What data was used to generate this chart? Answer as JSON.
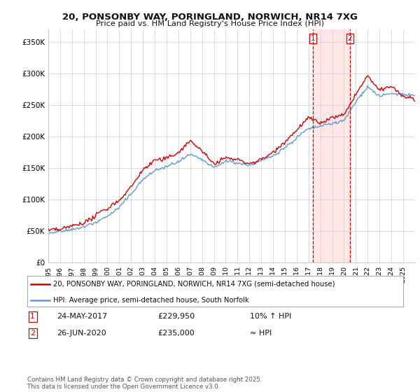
{
  "title": "20, PONSONBY WAY, PORINGLAND, NORWICH, NR14 7XG",
  "subtitle": "Price paid vs. HM Land Registry's House Price Index (HPI)",
  "legend_line1": "20, PONSONBY WAY, PORINGLAND, NORWICH, NR14 7XG (semi-detached house)",
  "legend_line2": "HPI: Average price, semi-detached house, South Norfolk",
  "transaction1_date": "24-MAY-2017",
  "transaction1_price": "£229,950",
  "transaction1_hpi": "10% ↑ HPI",
  "transaction2_date": "26-JUN-2020",
  "transaction2_price": "£235,000",
  "transaction2_hpi": "≈ HPI",
  "footer": "Contains HM Land Registry data © Crown copyright and database right 2025.\nThis data is licensed under the Open Government Licence v3.0.",
  "red_color": "#cc0000",
  "blue_color": "#6699cc",
  "background_color": "#ffffff",
  "grid_color": "#cccccc",
  "ylim": [
    0,
    370000
  ],
  "yticks": [
    0,
    50000,
    100000,
    150000,
    200000,
    250000,
    300000,
    350000
  ],
  "ytick_labels": [
    "£0",
    "£50K",
    "£100K",
    "£150K",
    "£200K",
    "£250K",
    "£300K",
    "£350K"
  ],
  "transaction1_x": 2017.38,
  "transaction2_x": 2020.49,
  "hpi_anchors_x": [
    1995,
    1996,
    1997,
    1998,
    1999,
    2000,
    2001,
    2002,
    2003,
    2004,
    2005,
    2006,
    2007,
    2008,
    2009,
    2010,
    2011,
    2012,
    2013,
    2014,
    2015,
    2016,
    2017,
    2018,
    2019,
    2020,
    2021,
    2022,
    2023,
    2024,
    2025,
    2026
  ],
  "hpi_anchors_y": [
    47000,
    49000,
    53000,
    59000,
    67000,
    77000,
    90000,
    112000,
    135000,
    150000,
    155000,
    163000,
    175000,
    167000,
    153000,
    163000,
    160000,
    157000,
    161000,
    170000,
    183000,
    198000,
    213000,
    218000,
    222000,
    226000,
    255000,
    278000,
    262000,
    268000,
    266000,
    264000
  ],
  "prop_anchors_x": [
    1995,
    1996,
    1997,
    1998,
    1999,
    2000,
    2001,
    2002,
    2003,
    2004,
    2005,
    2006,
    2007,
    2008,
    2009,
    2010,
    2011,
    2012,
    2013,
    2014,
    2015,
    2016,
    2017,
    2018,
    2019,
    2020,
    2021,
    2022,
    2023,
    2024,
    2025,
    2026
  ],
  "prop_anchors_y": [
    50000,
    52000,
    57000,
    63000,
    72000,
    83000,
    97000,
    120000,
    148000,
    162000,
    165000,
    175000,
    195000,
    180000,
    162000,
    172000,
    168000,
    163000,
    168000,
    180000,
    196000,
    212000,
    232000,
    225000,
    233000,
    238000,
    272000,
    300000,
    278000,
    285000,
    270000,
    265000
  ]
}
